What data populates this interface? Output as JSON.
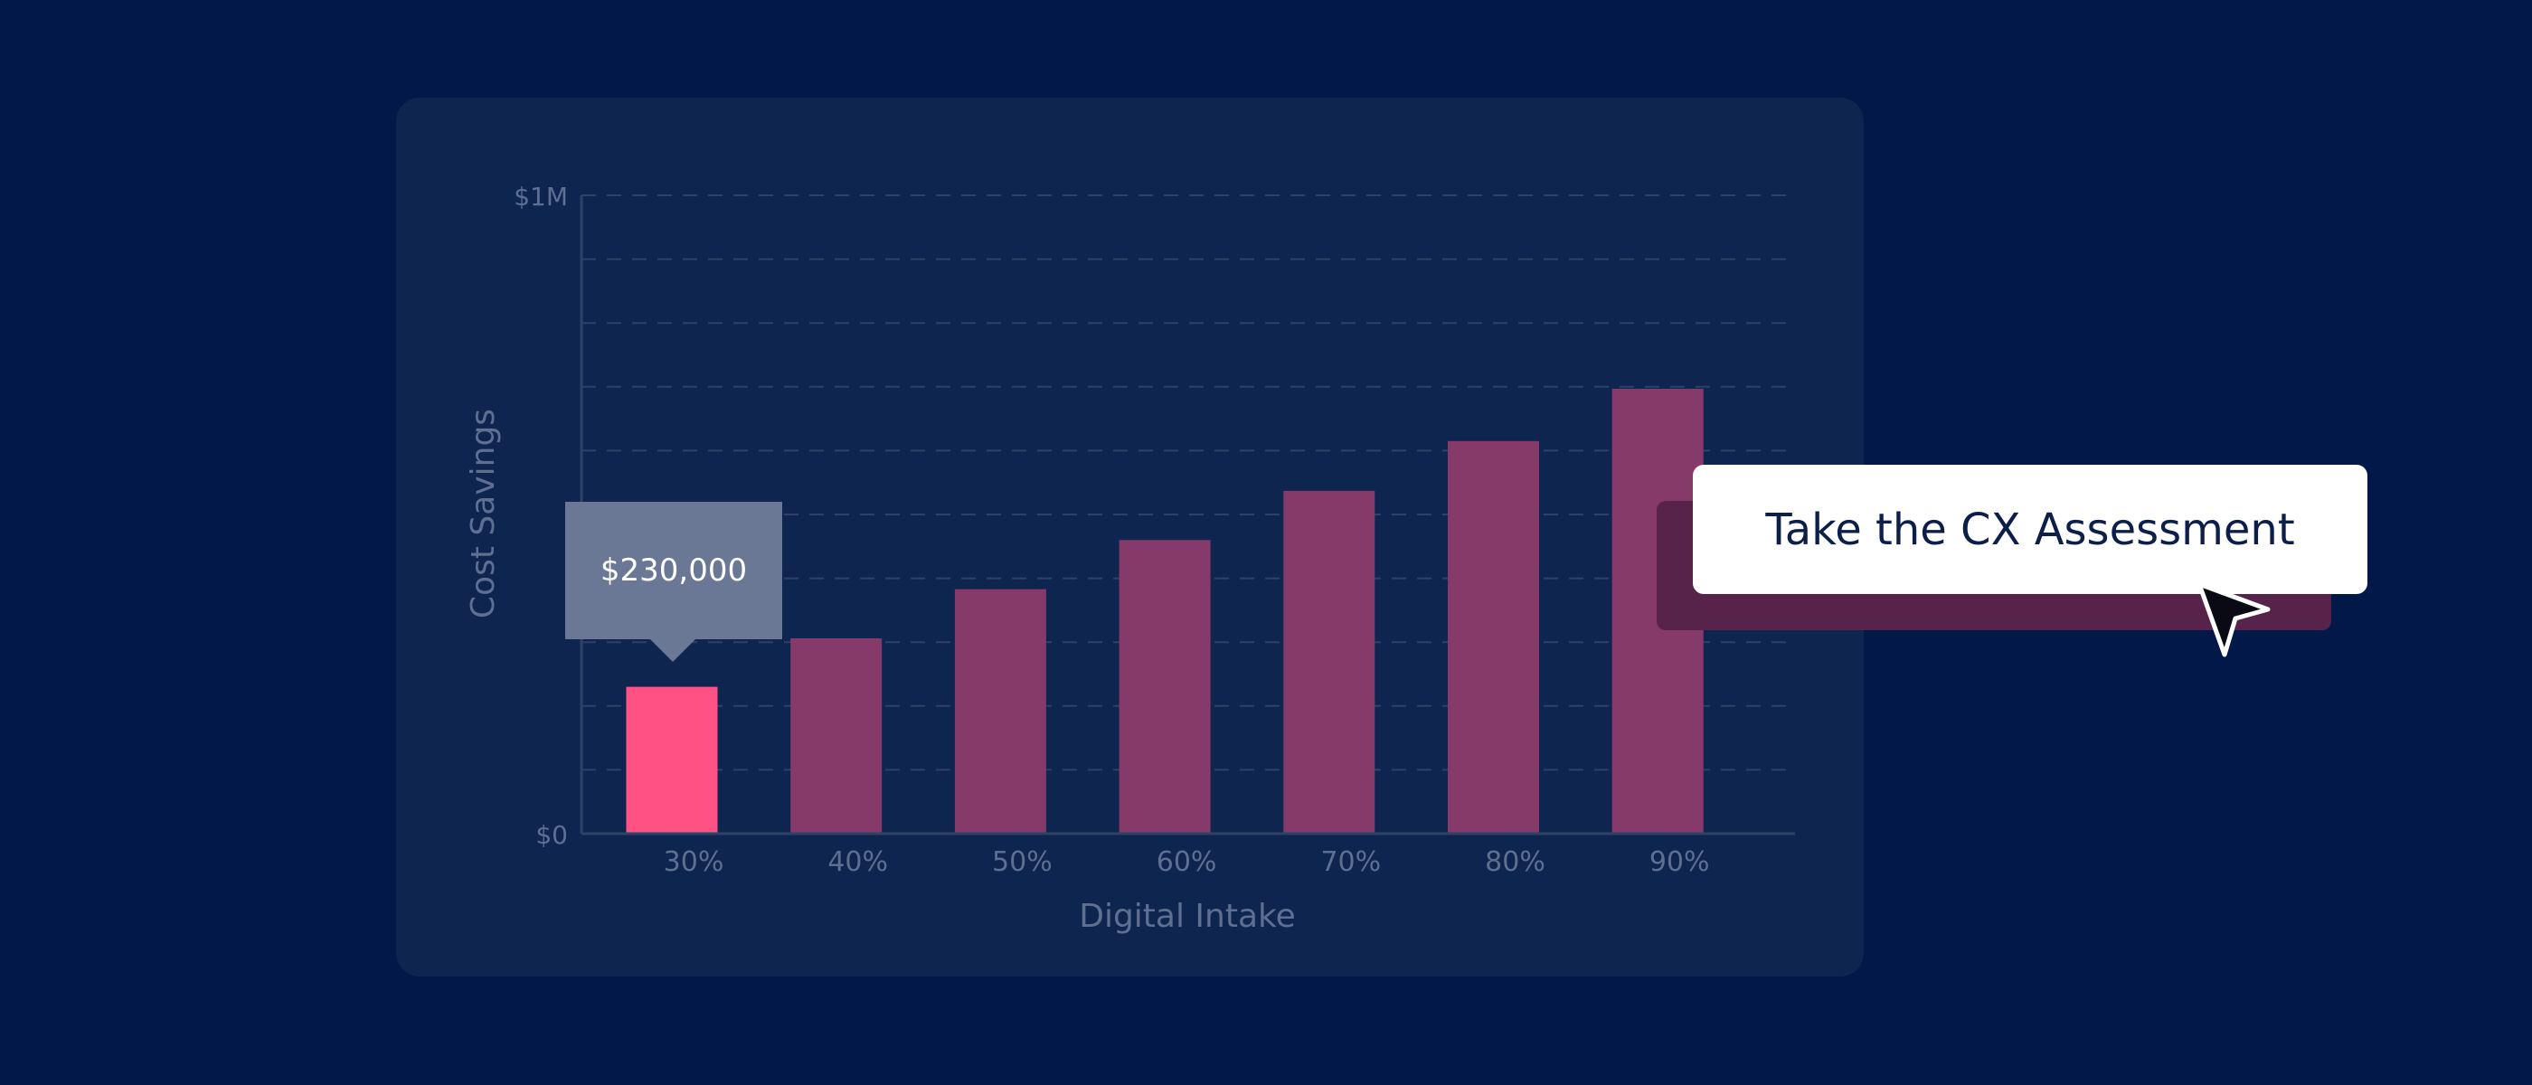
{
  "chart_data": {
    "type": "bar",
    "title": "",
    "xlabel": "Digital Intake",
    "ylabel": "Cost Savings",
    "categories": [
      "30%",
      "40%",
      "50%",
      "60%",
      "70%",
      "80%",
      "90%"
    ],
    "values": [
      230000,
      306000,
      383000,
      460000,
      537000,
      615000,
      697000
    ],
    "ylim": [
      0,
      1000000
    ],
    "y_tick_labels": [
      "$0",
      "$1M"
    ],
    "grid": true,
    "highlighted_index": 0,
    "colors": {
      "highlight": "#ff5184",
      "bar": "#853a6a",
      "grid": "#2e4266",
      "axis": "#2e4266"
    }
  },
  "tooltip": {
    "label": "$230,000"
  },
  "cta": {
    "label": "Take the CX Assessment",
    "shadow_color": "#58234b"
  },
  "icons": {
    "cursor": "arrow-cursor-icon"
  }
}
